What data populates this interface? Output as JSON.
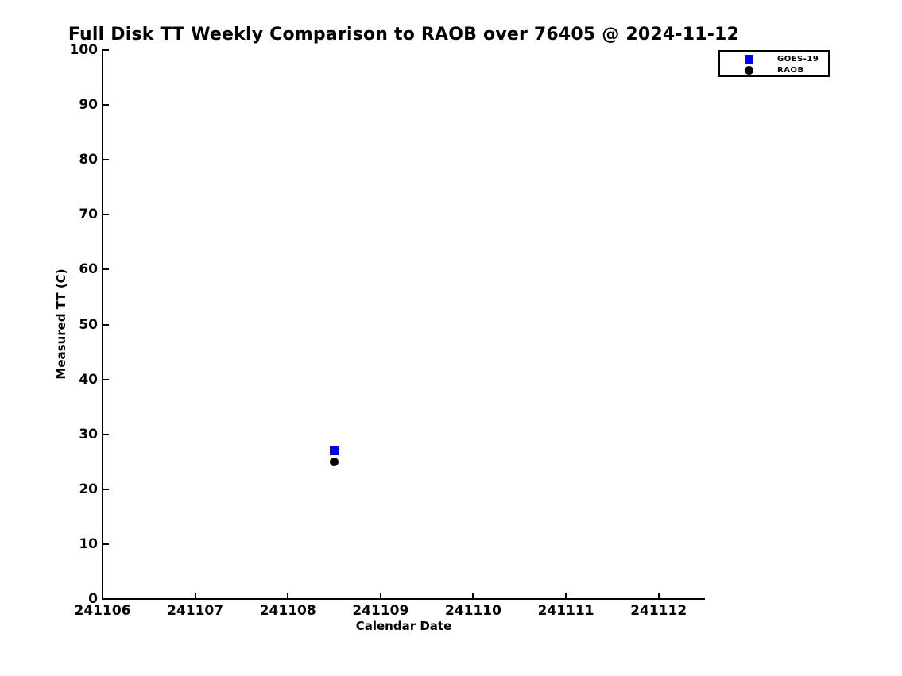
{
  "chart_data": {
    "type": "scatter",
    "title": "Full Disk TT Weekly Comparison to RAOB over 76405 @ 2024-11-12",
    "xlabel": "Calendar Date",
    "ylabel": "Measured TT (C)",
    "x_ticks": [
      241106,
      241107,
      241108,
      241109,
      241110,
      241111,
      241112
    ],
    "y_ticks": [
      0,
      10,
      20,
      30,
      40,
      50,
      60,
      70,
      80,
      90,
      100
    ],
    "xlim": [
      241106,
      241112.5
    ],
    "ylim": [
      0,
      100
    ],
    "grid": false,
    "background_color": "#ffffff",
    "axis_color": "#000000",
    "legend_position": "upper right",
    "series": [
      {
        "name": "RAOB",
        "marker": "circle",
        "color": "#000000",
        "points": [
          {
            "x": 241108.5,
            "y": 25
          }
        ]
      },
      {
        "name": "GOES-19",
        "marker": "square",
        "color": "#0000ff",
        "points": [
          {
            "x": 241108.5,
            "y": 27
          }
        ]
      }
    ]
  }
}
